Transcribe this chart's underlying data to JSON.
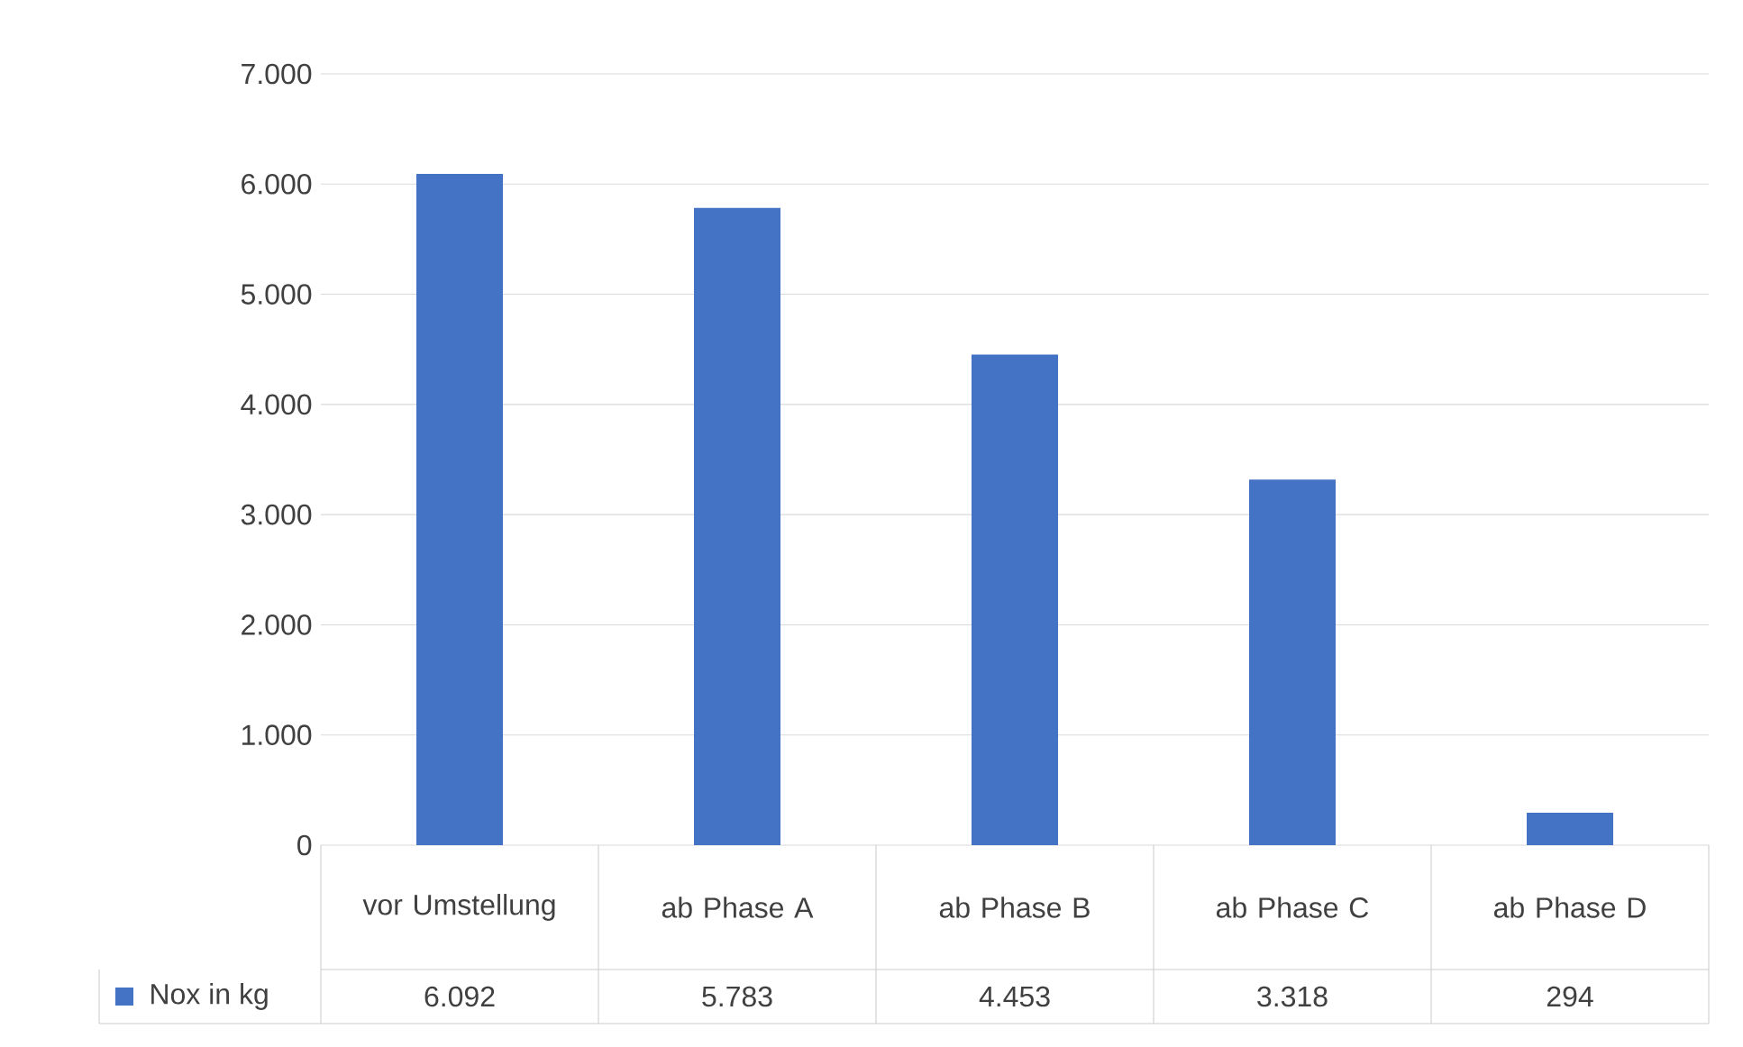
{
  "chart_data": {
    "type": "bar",
    "categories": [
      "vor Umstellung",
      "ab Phase A",
      "ab Phase B",
      "ab Phase C",
      "ab Phase D"
    ],
    "series": [
      {
        "name": "Nox in kg",
        "color": "#4472c4",
        "values": [
          6092,
          5783,
          4453,
          3318,
          294
        ],
        "value_labels": [
          "6.092",
          "5.783",
          "4.453",
          "3.318",
          "294"
        ]
      }
    ],
    "ylim": [
      0,
      7000
    ],
    "yticks": [
      {
        "value": 0,
        "label": "0"
      },
      {
        "value": 1000,
        "label": "1.000"
      },
      {
        "value": 2000,
        "label": "2.000"
      },
      {
        "value": 3000,
        "label": "3.000"
      },
      {
        "value": 4000,
        "label": "4.000"
      },
      {
        "value": 5000,
        "label": "5.000"
      },
      {
        "value": 6000,
        "label": "6.000"
      },
      {
        "value": 7000,
        "label": "7.000"
      }
    ],
    "grid": "y",
    "legend": "bottom"
  }
}
